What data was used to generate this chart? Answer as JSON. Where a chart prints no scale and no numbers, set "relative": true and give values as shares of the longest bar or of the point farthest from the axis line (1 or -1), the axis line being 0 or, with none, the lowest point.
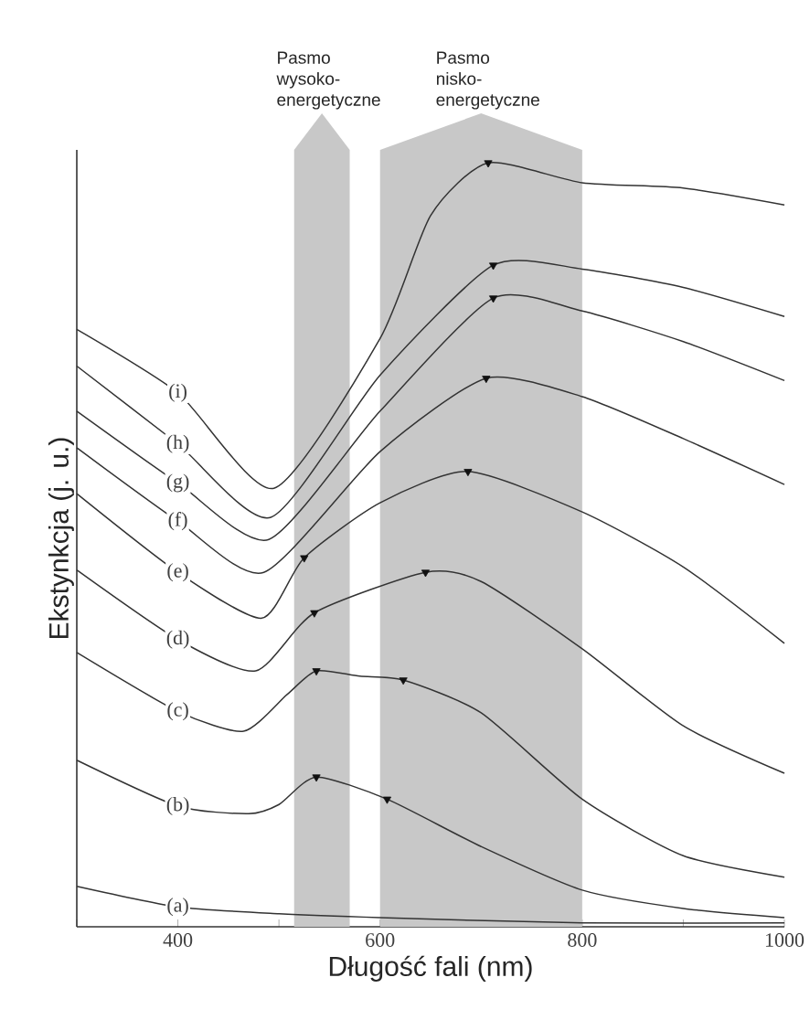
{
  "chart_data": {
    "type": "line",
    "relative": true,
    "xlabel": "Długość fali (nm)",
    "ylabel": "Ekstynkcja (j. u.)",
    "xlim": [
      300,
      1000
    ],
    "xticks": [
      {
        "value": 300,
        "label": null
      },
      400,
      {
        "value": 500,
        "label": null
      },
      600,
      {
        "value": 700,
        "label": null
      },
      800,
      {
        "value": 900,
        "label": null
      },
      1000
    ],
    "bands": [
      {
        "axis": "x",
        "from": 515,
        "to": 570,
        "label": "Pasmo wysoko-energetyczne",
        "color": "#c8c8c8"
      },
      {
        "axis": "x",
        "from": 600,
        "to": 800,
        "label": "Pasmo nisko-energetyczne",
        "color": "#c8c8c8"
      }
    ],
    "series": [
      {
        "name": "(a)",
        "color": "#333333",
        "x": [
          300,
          400,
          500,
          600,
          800,
          1000
        ],
        "values": [
          0.053,
          0.026,
          0.017,
          0.012,
          0.005,
          0.005
        ]
      },
      {
        "name": "(b)",
        "color": "#333333",
        "x": [
          300,
          400,
          470,
          500,
          537,
          607,
          700,
          800,
          900,
          1000
        ],
        "values": [
          0.218,
          0.158,
          0.148,
          0.16,
          0.196,
          0.167,
          0.105,
          0.048,
          0.024,
          0.012
        ]
      },
      {
        "name": "(c)",
        "color": "#333333",
        "x": [
          300,
          400,
          465,
          508,
          537,
          580,
          623,
          700,
          800,
          900,
          1000
        ],
        "values": [
          0.359,
          0.282,
          0.256,
          0.304,
          0.335,
          0.328,
          0.323,
          0.28,
          0.167,
          0.093,
          0.065
        ]
      },
      {
        "name": "(d)",
        "color": "#333333",
        "x": [
          300,
          400,
          477,
          535,
          645,
          700,
          800,
          900,
          1000
        ],
        "values": [
          0.467,
          0.376,
          0.335,
          0.411,
          0.464,
          0.452,
          0.364,
          0.263,
          0.201
        ]
      },
      {
        "name": "(e)",
        "color": "#333333",
        "x": [
          300,
          400,
          483,
          525,
          600,
          687,
          800,
          900,
          1000
        ],
        "values": [
          0.567,
          0.464,
          0.404,
          0.483,
          0.555,
          0.596,
          0.543,
          0.471,
          0.371
        ]
      },
      {
        "name": "(f)",
        "color": "#333333",
        "x": [
          300,
          400,
          485,
          600,
          705,
          800,
          900,
          1000
        ],
        "values": [
          0.627,
          0.531,
          0.464,
          0.622,
          0.718,
          0.694,
          0.639,
          0.579
        ]
      },
      {
        "name": "(g)",
        "color": "#333333",
        "x": [
          300,
          400,
          490,
          600,
          712,
          800,
          900,
          1000
        ],
        "values": [
          0.675,
          0.581,
          0.507,
          0.675,
          0.823,
          0.806,
          0.766,
          0.715
        ]
      },
      {
        "name": "(h)",
        "color": "#333333",
        "x": [
          300,
          400,
          492,
          600,
          712,
          800,
          900,
          1000
        ],
        "values": [
          0.734,
          0.632,
          0.536,
          0.722,
          0.866,
          0.861,
          0.837,
          0.799
        ]
      },
      {
        "name": "(i)",
        "color": "#333333",
        "x": [
          300,
          400,
          495,
          600,
          650,
          707,
          800,
          900,
          1000
        ],
        "values": [
          0.782,
          0.699,
          0.574,
          0.77,
          0.931,
          1.0,
          0.974,
          0.967,
          0.945
        ]
      },
      {
        "type": "scatter",
        "marker": "triangle",
        "color": "#111111",
        "x": [
          707,
          712,
          712,
          705,
          687,
          525,
          645,
          535,
          537,
          623,
          537,
          607
        ],
        "values": [
          1.0,
          0.866,
          0.823,
          0.718,
          0.596,
          0.483,
          0.464,
          0.411,
          0.335,
          0.323,
          0.196,
          0.167
        ]
      }
    ]
  }
}
